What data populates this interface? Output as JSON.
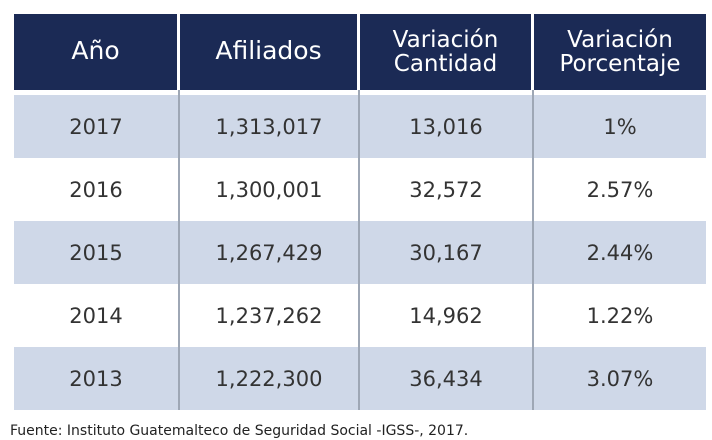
{
  "colors": {
    "header_bg": "#1b2a55",
    "header_text": "#ffffff",
    "row_shaded": "#cfd8e8",
    "row_white": "#ffffff",
    "divider": "#9ea7b5"
  },
  "source": "Fuente: Instituto Guatemalteco de Seguridad Social -IGSS-, 2017.",
  "chart_data": {
    "type": "table",
    "columns": [
      {
        "line1": "Año",
        "line2": ""
      },
      {
        "line1": "Afiliados",
        "line2": ""
      },
      {
        "line1": "Variación",
        "line2": "Cantidad"
      },
      {
        "line1": "Variación",
        "line2": "Porcentaje"
      }
    ],
    "rows": [
      [
        "2017",
        "1,313,017",
        "13,016",
        "1%"
      ],
      [
        "2016",
        "1,300,001",
        "32,572",
        "2.57%"
      ],
      [
        "2015",
        "1,267,429",
        "30,167",
        "2.44%"
      ],
      [
        "2014",
        "1,237,262",
        "14,962",
        "1.22%"
      ],
      [
        "2013",
        "1,222,300",
        "36,434",
        "3.07%"
      ]
    ]
  }
}
